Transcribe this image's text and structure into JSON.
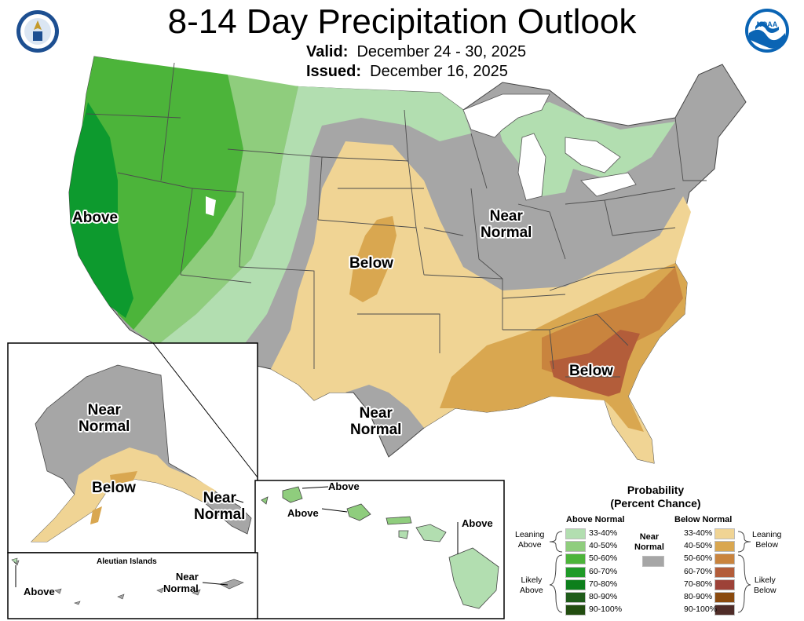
{
  "title": "8-14 Day Precipitation Outlook",
  "valid_label": "Valid:",
  "valid_value": "December 24 - 30, 2025",
  "issued_label": "Issued:",
  "issued_value": "December 16, 2025",
  "logos": {
    "left": "Department of Commerce seal",
    "right": "NOAA logo"
  },
  "map_labels": {
    "conus_above": "Above",
    "conus_below_plains": "Below",
    "conus_below_southeast": "Below",
    "conus_near_normal_midwest": "Near\nNormal",
    "conus_near_normal_texas": "Near\nNormal",
    "alaska_near_normal_north": "Near\nNormal",
    "alaska_below": "Below",
    "alaska_near_normal_southeast": "Near\nNormal",
    "hawaii_above_1": "Above",
    "hawaii_above_2": "Above",
    "hawaii_above_3": "Above",
    "aleutian_title": "Aleutian Islands",
    "aleutian_above": "Above",
    "aleutian_near_normal": "Near\nNormal"
  },
  "legend": {
    "title": "Probability\n(Percent Chance)",
    "above_header": "Above Normal",
    "below_header": "Below Normal",
    "near_header": "Near\nNormal",
    "near_color": "#a6a6a6",
    "leaning_above": "Leaning\nAbove",
    "likely_above": "Likely\nAbove",
    "leaning_below": "Leaning\nBelow",
    "likely_below": "Likely\nBelow",
    "above_items": [
      {
        "label": "33-40%",
        "color": "#b2deb0"
      },
      {
        "label": "40-50%",
        "color": "#8fcd7d"
      },
      {
        "label": "50-60%",
        "color": "#4cb43a"
      },
      {
        "label": "60-70%",
        "color": "#1f9a28"
      },
      {
        "label": "70-80%",
        "color": "#0d7f1c"
      },
      {
        "label": "80-90%",
        "color": "#1f5c1a"
      },
      {
        "label": "90-100%",
        "color": "#224d10"
      }
    ],
    "below_items": [
      {
        "label": "33-40%",
        "color": "#f0d494"
      },
      {
        "label": "40-50%",
        "color": "#d9a750"
      },
      {
        "label": "50-60%",
        "color": "#c9843e"
      },
      {
        "label": "60-70%",
        "color": "#b35d3a"
      },
      {
        "label": "70-80%",
        "color": "#9d4238"
      },
      {
        "label": "80-90%",
        "color": "#8a4a0e"
      },
      {
        "label": "90-100%",
        "color": "#4f2c28"
      }
    ]
  }
}
